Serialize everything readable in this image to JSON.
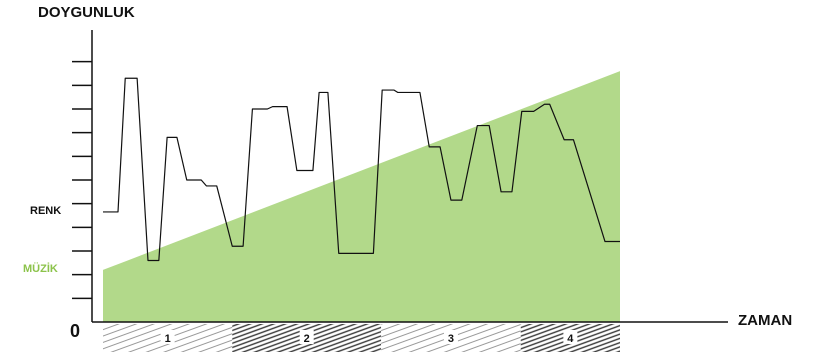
{
  "chart_data": {
    "type": "line",
    "title": "",
    "ylabel": "DOYGUNLUK",
    "xlabel": "ZAMAN",
    "origin_label": "0",
    "xlim": [
      0,
      100
    ],
    "ylim": [
      0,
      12
    ],
    "series_labels": [
      {
        "text": "RENK",
        "color": "#111111"
      },
      {
        "text": "MÜZİK",
        "color": "#8cc34b"
      }
    ],
    "series": [
      {
        "type": "area",
        "color": "#b2d98a",
        "points": [
          [
            0,
            2.2
          ],
          [
            100,
            10.6
          ]
        ]
      },
      {
        "type": "line",
        "color": "#111111",
        "points": [
          [
            0,
            4.65
          ],
          [
            2.9,
            4.65
          ],
          [
            4.3,
            10.3
          ],
          [
            6.6,
            10.3
          ],
          [
            8.7,
            2.6
          ],
          [
            10.8,
            2.6
          ],
          [
            12.4,
            7.8
          ],
          [
            14.3,
            7.8
          ],
          [
            16.2,
            6.0
          ],
          [
            19.0,
            6.0
          ],
          [
            20.0,
            5.75
          ],
          [
            22.0,
            5.75
          ],
          [
            25.0,
            3.2
          ],
          [
            27.1,
            3.2
          ],
          [
            28.9,
            9.0
          ],
          [
            31.8,
            9.0
          ],
          [
            32.8,
            9.1
          ],
          [
            35.6,
            9.1
          ],
          [
            37.5,
            6.4
          ],
          [
            40.6,
            6.4
          ],
          [
            41.8,
            9.7
          ],
          [
            43.5,
            9.7
          ],
          [
            45.6,
            2.9
          ],
          [
            52.3,
            2.9
          ],
          [
            54.0,
            9.8
          ],
          [
            56.3,
            9.8
          ],
          [
            57.0,
            9.7
          ],
          [
            61.3,
            9.7
          ],
          [
            63.1,
            7.4
          ],
          [
            65.2,
            7.4
          ],
          [
            67.3,
            5.15
          ],
          [
            69.4,
            5.15
          ],
          [
            72.4,
            8.3
          ],
          [
            74.7,
            8.3
          ],
          [
            77.0,
            5.5
          ],
          [
            79.1,
            5.5
          ],
          [
            81.0,
            8.9
          ],
          [
            83.3,
            8.9
          ],
          [
            85.4,
            9.2
          ],
          [
            86.4,
            9.2
          ],
          [
            89.2,
            7.7
          ],
          [
            91.0,
            7.7
          ],
          [
            97.1,
            3.4
          ],
          [
            100,
            3.4
          ]
        ]
      }
    ],
    "segments": [
      {
        "label": "1",
        "from": 0,
        "to": 25.0,
        "hatch": "light"
      },
      {
        "label": "2",
        "from": 25.0,
        "to": 53.8,
        "hatch": "dark"
      },
      {
        "label": "3",
        "from": 53.8,
        "to": 80.8,
        "hatch": "light"
      },
      {
        "label": "4",
        "from": 80.8,
        "to": 100,
        "hatch": "dark"
      }
    ]
  }
}
